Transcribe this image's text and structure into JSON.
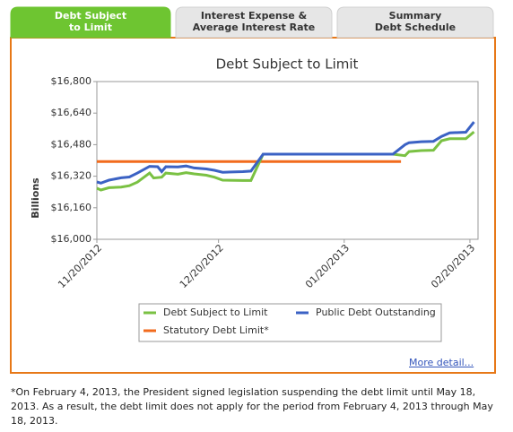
{
  "tabs": [
    {
      "lines": [
        "Debt Subject",
        "to Limit"
      ],
      "active": true
    },
    {
      "lines": [
        "Interest Expense &",
        "Average Interest Rate"
      ],
      "active": false
    },
    {
      "lines": [
        "Summary",
        "Debt Schedule"
      ],
      "active": false
    }
  ],
  "chart_data": {
    "type": "line",
    "title": "Debt Subject to Limit",
    "y_label": "Billions",
    "ylim": [
      16000,
      16800
    ],
    "yticks": [
      {
        "value": 16000,
        "label": "$16,000"
      },
      {
        "value": 16160,
        "label": "$16,160"
      },
      {
        "value": 16320,
        "label": "$16,320"
      },
      {
        "value": 16480,
        "label": "$16,480"
      },
      {
        "value": 16640,
        "label": "$16,640"
      },
      {
        "value": 16800,
        "label": "$16,800"
      }
    ],
    "xlim": [
      "11/20/2012",
      "02/22/2013"
    ],
    "xticks": [
      "11/20/2012",
      "12/20/2012",
      "01/20/2013",
      "02/20/2013"
    ],
    "grid": false,
    "series": [
      {
        "name": "Debt Subject to Limit",
        "color": "#7ac143",
        "x": [
          "11/20/2012",
          "11/21/2012",
          "11/23/2012",
          "11/26/2012",
          "11/28/2012",
          "11/30/2012",
          "12/03/2012",
          "12/04/2012",
          "12/06/2012",
          "12/07/2012",
          "12/10/2012",
          "12/12/2012",
          "12/14/2012",
          "12/17/2012",
          "12/19/2012",
          "12/21/2012",
          "12/26/2012",
          "12/28/2012",
          "12/31/2012",
          "01/15/2013",
          "02/01/2013",
          "02/04/2013",
          "02/05/2013",
          "02/08/2013",
          "02/11/2013",
          "02/13/2013",
          "02/15/2013",
          "02/19/2013",
          "02/21/2013"
        ],
        "values": [
          16259,
          16250,
          16262,
          16265,
          16272,
          16290,
          16336,
          16311,
          16315,
          16336,
          16330,
          16338,
          16332,
          16325,
          16315,
          16300,
          16298,
          16298,
          16432,
          16432,
          16432,
          16424,
          16445,
          16450,
          16452,
          16500,
          16510,
          16510,
          16545
        ]
      },
      {
        "name": "Public Debt Outstanding",
        "color": "#3b62c4",
        "x": [
          "11/20/2012",
          "11/21/2012",
          "11/23/2012",
          "11/26/2012",
          "11/28/2012",
          "11/30/2012",
          "12/03/2012",
          "12/05/2012",
          "12/06/2012",
          "12/07/2012",
          "12/10/2012",
          "12/12/2012",
          "12/14/2012",
          "12/17/2012",
          "12/19/2012",
          "12/21/2012",
          "12/26/2012",
          "12/28/2012",
          "12/31/2012",
          "01/15/2013",
          "02/01/2013",
          "02/04/2013",
          "02/05/2013",
          "02/08/2013",
          "02/11/2013",
          "02/13/2013",
          "02/15/2013",
          "02/19/2013",
          "02/21/2013"
        ],
        "values": [
          16291,
          16285,
          16300,
          16312,
          16316,
          16336,
          16370,
          16368,
          16343,
          16368,
          16367,
          16372,
          16362,
          16357,
          16350,
          16340,
          16343,
          16346,
          16432,
          16432,
          16432,
          16480,
          16490,
          16495,
          16497,
          16522,
          16540,
          16543,
          16595
        ]
      },
      {
        "name": "Statutory Debt Limit*",
        "color": "#f26b1d",
        "x": [
          "11/20/2012",
          "02/03/2013"
        ],
        "values": [
          16394,
          16394
        ]
      }
    ]
  },
  "more_link": "More detail...",
  "footnote": "*On February 4, 2013, the President signed legislation suspending the debt limit until May 18, 2013. As a result, the debt limit does not apply for the period from February 4, 2013 through May 18, 2013."
}
